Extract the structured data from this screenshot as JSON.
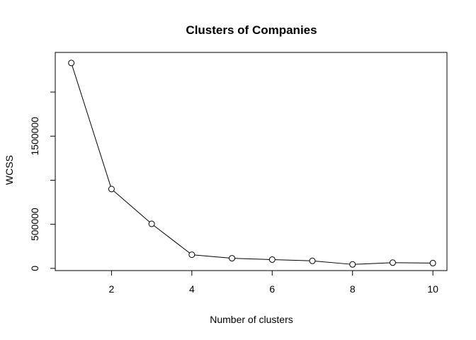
{
  "chart_data": {
    "type": "line",
    "title": "Clusters of Companies",
    "xlabel": "Number of clusters",
    "ylabel": "WCSS",
    "x": [
      1,
      2,
      3,
      4,
      5,
      6,
      7,
      8,
      9,
      10
    ],
    "series": [
      {
        "values": [
          2330000,
          900000,
          505000,
          155000,
          115000,
          100000,
          85000,
          45000,
          65000,
          60000
        ]
      }
    ],
    "xlim": [
      0.6,
      10.35
    ],
    "ylim": [
      -25000,
      2450000
    ],
    "x_ticks": [
      2,
      4,
      6,
      8,
      10
    ],
    "x_tick_labels": [
      "2",
      "4",
      "6",
      "8",
      "10"
    ],
    "y_ticks": [
      0,
      500000,
      1000000,
      1500000,
      2000000
    ],
    "y_tick_labels": [
      "0",
      "500000",
      "",
      "1500000",
      ""
    ],
    "grid": false,
    "marker": "open-circle",
    "line_color": "#000000"
  }
}
